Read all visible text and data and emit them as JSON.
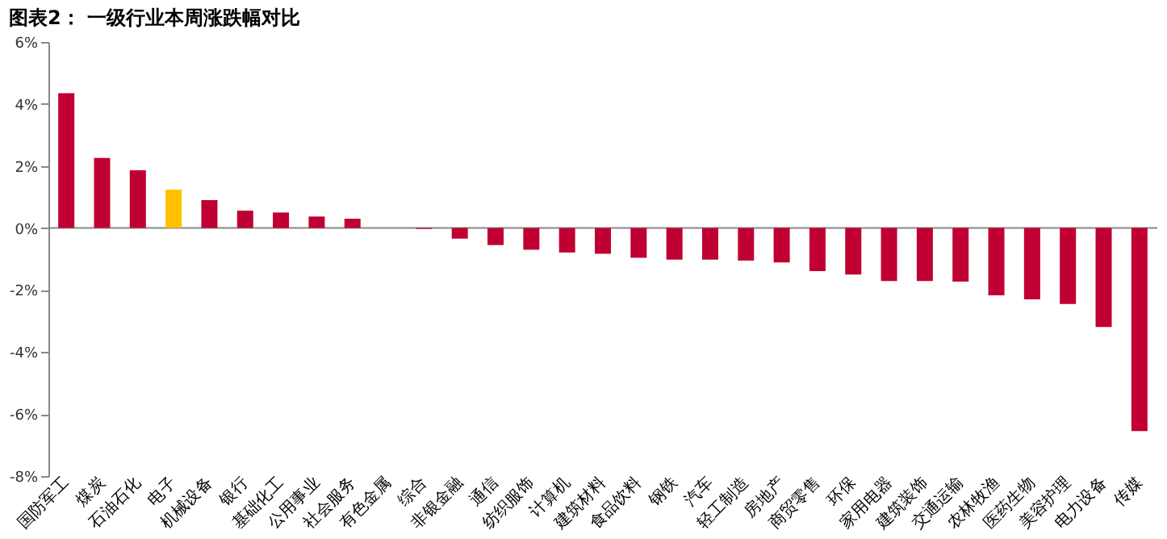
{
  "chart_data": {
    "type": "bar",
    "title": "图表2： 一级行业本周涨跌幅对比",
    "categories": [
      "国防军工",
      "煤炭",
      "石油石化",
      "电子",
      "机械设备",
      "银行",
      "基础化工",
      "公用事业",
      "社会服务",
      "有色金属",
      "综合",
      "非银金融",
      "通信",
      "纺织服饰",
      "计算机",
      "建筑材料",
      "食品饮料",
      "钢铁",
      "汽车",
      "轻工制造",
      "房地产",
      "商贸零售",
      "环保",
      "家用电器",
      "建筑装饰",
      "交通运输",
      "农林牧渔",
      "医药生物",
      "美容护理",
      "电力设备",
      "传媒"
    ],
    "values": [
      4.35,
      2.26,
      1.86,
      1.24,
      0.9,
      0.56,
      0.5,
      0.37,
      0.3,
      0.0,
      -0.03,
      -0.34,
      -0.55,
      -0.7,
      -0.79,
      -0.83,
      -0.96,
      -1.02,
      -1.02,
      -1.05,
      -1.11,
      -1.39,
      -1.5,
      -1.71,
      -1.71,
      -1.73,
      -2.17,
      -2.3,
      -2.45,
      -3.19,
      -6.55
    ],
    "colors": [
      "#c00032",
      "#c00032",
      "#c00032",
      "#ffc000",
      "#c00032",
      "#c00032",
      "#c00032",
      "#c00032",
      "#c00032",
      "#c00032",
      "#c00032",
      "#c00032",
      "#c00032",
      "#c00032",
      "#c00032",
      "#c00032",
      "#c00032",
      "#c00032",
      "#c00032",
      "#c00032",
      "#c00032",
      "#c00032",
      "#c00032",
      "#c00032",
      "#c00032",
      "#c00032",
      "#c00032",
      "#c00032",
      "#c00032",
      "#c00032",
      "#c00032"
    ],
    "ylim": [
      -8,
      6
    ],
    "yticks": [
      {
        "value": -8,
        "label": "-8%"
      },
      {
        "value": -6,
        "label": "-6%"
      },
      {
        "value": -4,
        "label": "-4%"
      },
      {
        "value": -2,
        "label": "-2%"
      },
      {
        "value": 0,
        "label": "0%"
      },
      {
        "value": 2,
        "label": "2%"
      },
      {
        "value": 4,
        "label": "4%"
      },
      {
        "value": 6,
        "label": "6%"
      }
    ]
  }
}
